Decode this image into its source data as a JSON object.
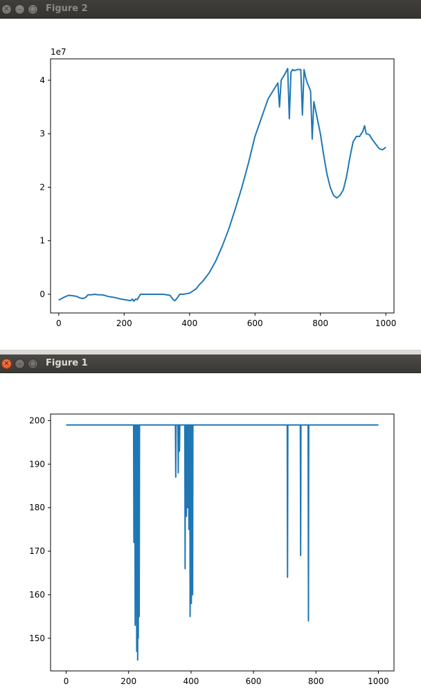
{
  "windows": {
    "figure2": {
      "title": "Figure 2"
    },
    "figure1": {
      "title": "Figure 1"
    }
  },
  "colors": {
    "line": "#1f77b4",
    "titlebar": "#3c3b37",
    "close_button_active": "#e05a24"
  },
  "icons": {
    "close": "close-icon",
    "minimize": "minimize-icon",
    "maximize": "maximize-icon"
  },
  "chart_data": [
    {
      "type": "line",
      "window": "Figure 2",
      "xlim": [
        -25,
        1025
      ],
      "ylim": [
        -0.35,
        4.4
      ],
      "x_ticks": [
        0,
        200,
        400,
        600,
        800,
        1000
      ],
      "x_tick_labels": [
        "0",
        "200",
        "400",
        "600",
        "800",
        "1000"
      ],
      "y_ticks": [
        0,
        1,
        2,
        3,
        4
      ],
      "y_tick_labels": [
        "0",
        "1",
        "2",
        "3",
        "4"
      ],
      "offset_label": "1e7",
      "grid": false,
      "series": [
        {
          "x": [
            0,
            15,
            30,
            45,
            55,
            65,
            75,
            82,
            90,
            100,
            110,
            120,
            130,
            140,
            150,
            170,
            190,
            210,
            220,
            225,
            230,
            235,
            240,
            250,
            280,
            320,
            340,
            350,
            355,
            360,
            370,
            380,
            390,
            400,
            410,
            420,
            430,
            440,
            460,
            480,
            500,
            520,
            540,
            560,
            580,
            600,
            620,
            640,
            660,
            670,
            675,
            680,
            690,
            700,
            705,
            710,
            715,
            720,
            730,
            740,
            745,
            750,
            755,
            760,
            770,
            775,
            780,
            790,
            800,
            810,
            820,
            830,
            840,
            850,
            860,
            870,
            880,
            890,
            900,
            910,
            920,
            930,
            935,
            940,
            950,
            960,
            970,
            980,
            990,
            1000
          ],
          "y": [
            -0.11,
            -0.06,
            -0.02,
            -0.03,
            -0.04,
            -0.07,
            -0.08,
            -0.06,
            -0.01,
            -0.01,
            0.0,
            -0.01,
            -0.01,
            -0.02,
            -0.04,
            -0.06,
            -0.09,
            -0.11,
            -0.12,
            -0.09,
            -0.13,
            -0.09,
            -0.1,
            0.0,
            0.0,
            0.0,
            -0.02,
            -0.1,
            -0.12,
            -0.09,
            0.0,
            0.0,
            0.01,
            0.02,
            0.06,
            0.1,
            0.18,
            0.24,
            0.4,
            0.62,
            0.9,
            1.22,
            1.6,
            2.0,
            2.45,
            2.95,
            3.3,
            3.65,
            3.85,
            3.95,
            3.5,
            4.0,
            4.1,
            4.22,
            3.28,
            4.15,
            4.2,
            4.18,
            4.2,
            4.2,
            3.35,
            4.2,
            4.05,
            3.95,
            3.8,
            2.9,
            3.6,
            3.3,
            3.0,
            2.6,
            2.25,
            2.0,
            1.85,
            1.8,
            1.85,
            1.95,
            2.2,
            2.55,
            2.85,
            2.95,
            2.95,
            3.05,
            3.15,
            3.0,
            2.98,
            2.88,
            2.8,
            2.72,
            2.7,
            2.75
          ]
        }
      ]
    },
    {
      "type": "line",
      "window": "Figure 1",
      "xlim": [
        -50,
        1050
      ],
      "ylim": [
        142.5,
        201.5
      ],
      "x_ticks": [
        0,
        200,
        400,
        600,
        800,
        1000
      ],
      "x_tick_labels": [
        "0",
        "200",
        "400",
        "600",
        "800",
        "1000"
      ],
      "y_ticks": [
        150,
        160,
        170,
        180,
        190,
        200
      ],
      "y_tick_labels": [
        "150",
        "160",
        "170",
        "180",
        "190",
        "200"
      ],
      "grid": false,
      "series": [
        {
          "x": [
            0,
            216,
            217,
            218,
            220,
            221,
            222,
            224,
            226,
            227,
            228,
            229,
            230,
            231,
            232,
            233,
            234,
            235,
            236,
            350,
            351,
            352,
            358,
            359,
            360,
            362,
            363,
            364,
            380,
            381,
            382,
            384,
            385,
            386,
            388,
            389,
            390,
            392,
            393,
            394,
            396,
            397,
            398,
            400,
            401,
            402,
            404,
            405,
            406,
            708,
            709,
            710,
            750,
            751,
            752,
            775,
            776,
            777,
            1000
          ],
          "y": [
            199,
            199,
            172,
            199,
            199,
            153,
            199,
            199,
            147,
            199,
            199,
            145,
            199,
            150,
            199,
            199,
            155,
            199,
            199,
            199,
            187,
            199,
            199,
            188,
            199,
            199,
            193,
            199,
            199,
            166,
            199,
            199,
            178,
            199,
            199,
            180,
            199,
            199,
            175,
            199,
            199,
            155,
            199,
            199,
            158,
            199,
            199,
            160,
            199,
            199,
            164,
            199,
            199,
            169,
            199,
            199,
            154,
            199,
            199
          ]
        }
      ]
    }
  ]
}
